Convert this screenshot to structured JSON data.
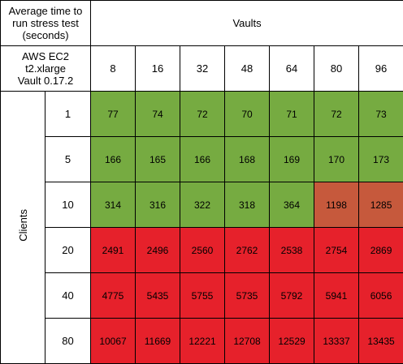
{
  "header": {
    "caption_lines": [
      "Average time to",
      "run stress test",
      "(seconds)"
    ],
    "env_lines": [
      "AWS EC2",
      "t2.xlarge",
      "Vault 0.17.2"
    ],
    "vaults_title": "Vaults",
    "clients_title": "Clients"
  },
  "vaults": [
    "8",
    "16",
    "32",
    "48",
    "64",
    "80",
    "96"
  ],
  "rows": [
    {
      "clients": "1",
      "values": [
        "77",
        "74",
        "72",
        "70",
        "71",
        "72",
        "73"
      ]
    },
    {
      "clients": "5",
      "values": [
        "166",
        "165",
        "166",
        "168",
        "169",
        "170",
        "173"
      ]
    },
    {
      "clients": "10",
      "values": [
        "314",
        "316",
        "322",
        "318",
        "364",
        "1198",
        "1285"
      ]
    },
    {
      "clients": "20",
      "values": [
        "2491",
        "2496",
        "2560",
        "2762",
        "2538",
        "2754",
        "2869"
      ]
    },
    {
      "clients": "40",
      "values": [
        "4775",
        "5435",
        "5755",
        "5735",
        "5792",
        "5941",
        "6056"
      ]
    },
    {
      "clients": "80",
      "values": [
        "10067",
        "11669",
        "12221",
        "12708",
        "12529",
        "13337",
        "13435"
      ]
    }
  ],
  "cell_colors": [
    [
      "green",
      "green",
      "green",
      "green",
      "green",
      "green",
      "green"
    ],
    [
      "green",
      "green",
      "green",
      "green",
      "green",
      "green",
      "green"
    ],
    [
      "green",
      "green",
      "green",
      "green",
      "green",
      "orange",
      "orange"
    ],
    [
      "red",
      "red",
      "red",
      "red",
      "red",
      "red",
      "red"
    ],
    [
      "red",
      "red",
      "red",
      "red",
      "red",
      "red",
      "red"
    ],
    [
      "red",
      "red",
      "red",
      "red",
      "red",
      "red",
      "red"
    ]
  ],
  "colors": {
    "green": "#76ab41",
    "orange": "#c6593c",
    "red": "#e6212b"
  }
}
